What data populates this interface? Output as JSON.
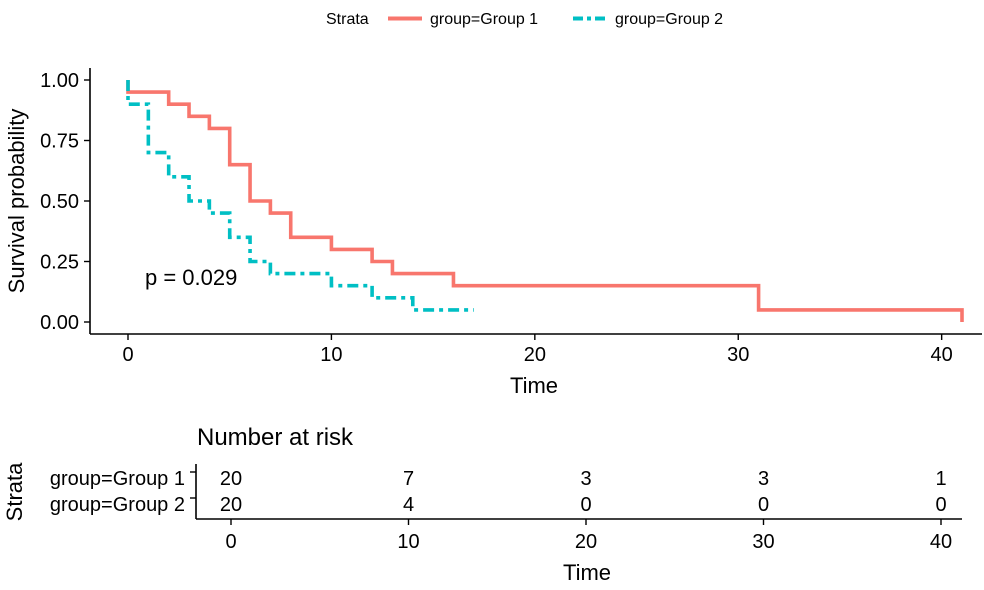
{
  "chart_data": [
    {
      "type": "line",
      "subtype": "kaplan-meier step",
      "xlabel": "Time",
      "ylabel": "Survival probability",
      "xlim": [
        0,
        41
      ],
      "ylim": [
        0,
        1
      ],
      "x_ticks": [
        "0",
        "10",
        "20",
        "30",
        "40"
      ],
      "y_ticks": [
        "0.00",
        "0.25",
        "0.50",
        "0.75",
        "1.00"
      ],
      "grid": false,
      "legend": {
        "position": "top",
        "title": "Strata",
        "entries": [
          "group=Group 1",
          "group=Group 2"
        ]
      },
      "annotation": "p = 0.029",
      "series": [
        {
          "name": "group=Group 1",
          "color": "#F8766D",
          "line_style": "solid",
          "x": [
            0,
            2,
            3,
            4,
            5,
            6,
            7,
            8,
            10,
            12,
            13,
            16,
            31,
            41
          ],
          "y": [
            0.95,
            0.9,
            0.85,
            0.8,
            0.65,
            0.5,
            0.45,
            0.35,
            0.3,
            0.25,
            0.2,
            0.15,
            0.05,
            0.0
          ]
        },
        {
          "name": "group=Group 2",
          "color": "#00BFC4",
          "line_style": "dashed",
          "x": [
            0,
            1,
            2,
            3,
            4,
            5,
            6,
            7,
            10,
            12,
            14,
            17
          ],
          "y": [
            0.9,
            0.7,
            0.6,
            0.5,
            0.45,
            0.35,
            0.25,
            0.2,
            0.15,
            0.1,
            0.05,
            0.05
          ]
        }
      ]
    },
    {
      "type": "table",
      "title": "Number at risk",
      "xlabel": "Time",
      "ylabel": "Strata",
      "x_ticks": [
        "0",
        "10",
        "20",
        "30",
        "40"
      ],
      "rows": [
        {
          "label": "group=Group 1",
          "color": "#F8766D",
          "values": [
            "20",
            "7",
            "3",
            "3",
            "1"
          ]
        },
        {
          "label": "group=Group 2",
          "color": "#00BFC4",
          "values": [
            "20",
            "4",
            "0",
            "0",
            "0"
          ]
        }
      ]
    }
  ]
}
